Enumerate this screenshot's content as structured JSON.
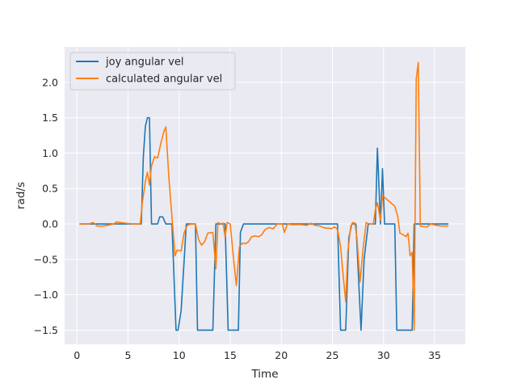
{
  "chart_data": {
    "type": "line",
    "xlabel": "Time",
    "ylabel": "rad/s",
    "xlim": [
      -1.2,
      38.0
    ],
    "ylim": [
      -1.7,
      2.5
    ],
    "xticks": [
      0,
      5,
      10,
      15,
      20,
      25,
      30,
      35
    ],
    "yticks": [
      -1.5,
      -1.0,
      -0.5,
      0.0,
      0.5,
      1.0,
      1.5,
      2.0
    ],
    "xtick_labels": [
      "0",
      "5",
      "10",
      "15",
      "20",
      "25",
      "30",
      "35"
    ],
    "ytick_labels": [
      "−1.5",
      "−1.0",
      "−0.5",
      "0.0",
      "0.5",
      "1.0",
      "1.5",
      "2.0"
    ],
    "grid": true,
    "legend_position": "upper-left",
    "background": "#EAEAF2",
    "series": [
      {
        "name": "joy angular vel",
        "color": "#1f77b4",
        "points": [
          [
            0.3,
            0.0
          ],
          [
            1.5,
            0.0
          ],
          [
            3.0,
            0.0
          ],
          [
            5.0,
            0.0
          ],
          [
            6.3,
            0.0
          ],
          [
            6.5,
            0.95
          ],
          [
            6.7,
            1.38
          ],
          [
            6.9,
            1.5
          ],
          [
            7.1,
            1.5
          ],
          [
            7.3,
            0.0
          ],
          [
            7.9,
            0.0
          ],
          [
            8.1,
            0.1
          ],
          [
            8.4,
            0.1
          ],
          [
            8.7,
            0.0
          ],
          [
            9.3,
            0.0
          ],
          [
            9.7,
            -1.5
          ],
          [
            9.9,
            -1.5
          ],
          [
            10.2,
            -1.22
          ],
          [
            10.5,
            -0.5
          ],
          [
            10.7,
            0.0
          ],
          [
            11.6,
            0.0
          ],
          [
            11.8,
            -1.5
          ],
          [
            13.3,
            -1.5
          ],
          [
            13.6,
            0.0
          ],
          [
            14.5,
            0.0
          ],
          [
            14.8,
            -1.5
          ],
          [
            15.8,
            -1.5
          ],
          [
            16.0,
            -0.12
          ],
          [
            16.3,
            0.0
          ],
          [
            20.0,
            0.0
          ],
          [
            25.5,
            0.0
          ],
          [
            25.8,
            -1.5
          ],
          [
            26.3,
            -1.5
          ],
          [
            26.6,
            -0.2
          ],
          [
            26.9,
            0.0
          ],
          [
            27.3,
            0.0
          ],
          [
            27.8,
            -1.5
          ],
          [
            28.1,
            -0.5
          ],
          [
            28.5,
            0.0
          ],
          [
            29.2,
            0.0
          ],
          [
            29.4,
            1.07
          ],
          [
            29.7,
            0.0
          ],
          [
            29.9,
            0.78
          ],
          [
            30.1,
            0.0
          ],
          [
            31.1,
            0.0
          ],
          [
            31.3,
            -1.5
          ],
          [
            32.8,
            -1.5
          ],
          [
            33.0,
            0.0
          ],
          [
            35.0,
            0.0
          ],
          [
            36.3,
            0.0
          ]
        ]
      },
      {
        "name": "calculated angular vel",
        "color": "#ff7f0e",
        "points": [
          [
            0.3,
            0.0
          ],
          [
            1.2,
            0.0
          ],
          [
            1.6,
            0.02
          ],
          [
            2.0,
            -0.03
          ],
          [
            2.5,
            -0.03
          ],
          [
            3.0,
            -0.02
          ],
          [
            3.6,
            0.0
          ],
          [
            3.9,
            0.03
          ],
          [
            4.3,
            0.02
          ],
          [
            4.8,
            0.01
          ],
          [
            5.5,
            0.0
          ],
          [
            6.2,
            0.0
          ],
          [
            6.4,
            0.3
          ],
          [
            6.7,
            0.6
          ],
          [
            6.9,
            0.73
          ],
          [
            7.1,
            0.55
          ],
          [
            7.3,
            0.82
          ],
          [
            7.6,
            0.95
          ],
          [
            7.9,
            0.93
          ],
          [
            8.2,
            1.13
          ],
          [
            8.5,
            1.3
          ],
          [
            8.7,
            1.37
          ],
          [
            9.0,
            0.65
          ],
          [
            9.3,
            0.1
          ],
          [
            9.6,
            -0.45
          ],
          [
            9.8,
            -0.37
          ],
          [
            10.2,
            -0.38
          ],
          [
            10.5,
            -0.12
          ],
          [
            10.8,
            -0.02
          ],
          [
            11.2,
            0.0
          ],
          [
            11.6,
            0.0
          ],
          [
            11.9,
            -0.22
          ],
          [
            12.2,
            -0.3
          ],
          [
            12.5,
            -0.25
          ],
          [
            12.8,
            -0.13
          ],
          [
            13.3,
            -0.12
          ],
          [
            13.6,
            -0.63
          ],
          [
            13.8,
            0.02
          ],
          [
            14.1,
            0.0
          ],
          [
            14.3,
            0.01
          ],
          [
            14.5,
            -0.18
          ],
          [
            14.7,
            0.02
          ],
          [
            15.0,
            0.0
          ],
          [
            15.3,
            -0.45
          ],
          [
            15.6,
            -0.87
          ],
          [
            15.9,
            -0.32
          ],
          [
            16.2,
            -0.27
          ],
          [
            16.5,
            -0.28
          ],
          [
            16.8,
            -0.25
          ],
          [
            17.1,
            -0.18
          ],
          [
            17.4,
            -0.17
          ],
          [
            17.8,
            -0.18
          ],
          [
            18.1,
            -0.15
          ],
          [
            18.4,
            -0.08
          ],
          [
            18.8,
            -0.05
          ],
          [
            19.2,
            -0.07
          ],
          [
            19.6,
            0.0
          ],
          [
            20.1,
            0.0
          ],
          [
            20.3,
            -0.12
          ],
          [
            20.6,
            0.0
          ],
          [
            21.0,
            -0.01
          ],
          [
            21.5,
            -0.01
          ],
          [
            22.0,
            -0.01
          ],
          [
            22.5,
            -0.02
          ],
          [
            22.9,
            0.01
          ],
          [
            23.3,
            -0.02
          ],
          [
            23.8,
            -0.03
          ],
          [
            24.1,
            -0.05
          ],
          [
            24.4,
            -0.06
          ],
          [
            24.7,
            -0.06
          ],
          [
            24.9,
            -0.07
          ],
          [
            25.2,
            -0.04
          ],
          [
            25.5,
            -0.08
          ],
          [
            25.8,
            -0.32
          ],
          [
            26.0,
            -0.65
          ],
          [
            26.3,
            -1.1
          ],
          [
            26.5,
            -0.4
          ],
          [
            26.8,
            -0.03
          ],
          [
            27.0,
            0.02
          ],
          [
            27.2,
            0.01
          ],
          [
            27.4,
            -0.2
          ],
          [
            27.7,
            -0.82
          ],
          [
            28.0,
            -0.35
          ],
          [
            28.3,
            0.02
          ],
          [
            28.6,
            0.0
          ],
          [
            29.0,
            0.0
          ],
          [
            29.2,
            0.2
          ],
          [
            29.4,
            0.3
          ],
          [
            29.7,
            0.05
          ],
          [
            29.9,
            0.4
          ],
          [
            30.3,
            0.35
          ],
          [
            30.7,
            0.3
          ],
          [
            31.1,
            0.25
          ],
          [
            31.4,
            0.1
          ],
          [
            31.6,
            -0.13
          ],
          [
            31.9,
            -0.15
          ],
          [
            32.2,
            -0.18
          ],
          [
            32.4,
            -0.13
          ],
          [
            32.6,
            -0.45
          ],
          [
            32.8,
            -0.4
          ],
          [
            33.0,
            -1.5
          ],
          [
            33.2,
            2.05
          ],
          [
            33.4,
            2.28
          ],
          [
            33.6,
            -0.03
          ],
          [
            34.0,
            -0.04
          ],
          [
            34.3,
            -0.04
          ],
          [
            34.6,
            0.0
          ],
          [
            35.2,
            -0.02
          ],
          [
            35.6,
            -0.03
          ],
          [
            36.3,
            -0.03
          ]
        ]
      }
    ]
  }
}
